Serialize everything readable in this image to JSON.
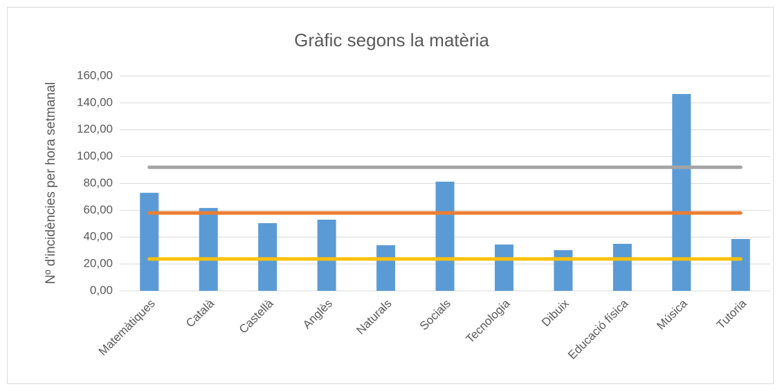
{
  "chart_data": {
    "type": "bar",
    "title": "Gràfic segons la matèria",
    "y_label": "Nº d'incidències per hora setmanal",
    "categories": [
      "Matemàtiques",
      "Català",
      "Castellà",
      "Anglès",
      "Naturals",
      "Socials",
      "Tecnologia",
      "Dibuix",
      "Educació física",
      "Música",
      "Tutoria"
    ],
    "series": [
      {
        "type": "bar",
        "color": "#5b9bd5",
        "values": [
          73.0,
          61.7,
          50.4,
          53.0,
          34.0,
          81.3,
          34.5,
          30.3,
          35.0,
          146.6,
          38.6
        ]
      },
      {
        "type": "line",
        "color": "#a5a5a5",
        "values": [
          92,
          92,
          92,
          92,
          92,
          92,
          92,
          92,
          92,
          92,
          92
        ]
      },
      {
        "type": "line",
        "color": "#ed7d31",
        "values": [
          58,
          58,
          58,
          58,
          58,
          58,
          58,
          58,
          58,
          58,
          58
        ]
      },
      {
        "type": "line",
        "color": "#ffc000",
        "values": [
          23.7,
          23.7,
          23.7,
          23.7,
          23.7,
          23.7,
          23.7,
          23.7,
          23.7,
          23.7,
          23.7
        ]
      }
    ],
    "ylim": [
      0,
      160
    ],
    "yticks": [
      {
        "value": 0,
        "label": "0,00"
      },
      {
        "value": 20,
        "label": "20,00"
      },
      {
        "value": 40,
        "label": "40,00"
      },
      {
        "value": 60,
        "label": "60,00"
      },
      {
        "value": 80,
        "label": "80,00"
      },
      {
        "value": 100,
        "label": "100,00"
      },
      {
        "value": 120,
        "label": "120,00"
      },
      {
        "value": 140,
        "label": "140,00"
      },
      {
        "value": 160,
        "label": "160,00"
      }
    ],
    "grid": true
  }
}
